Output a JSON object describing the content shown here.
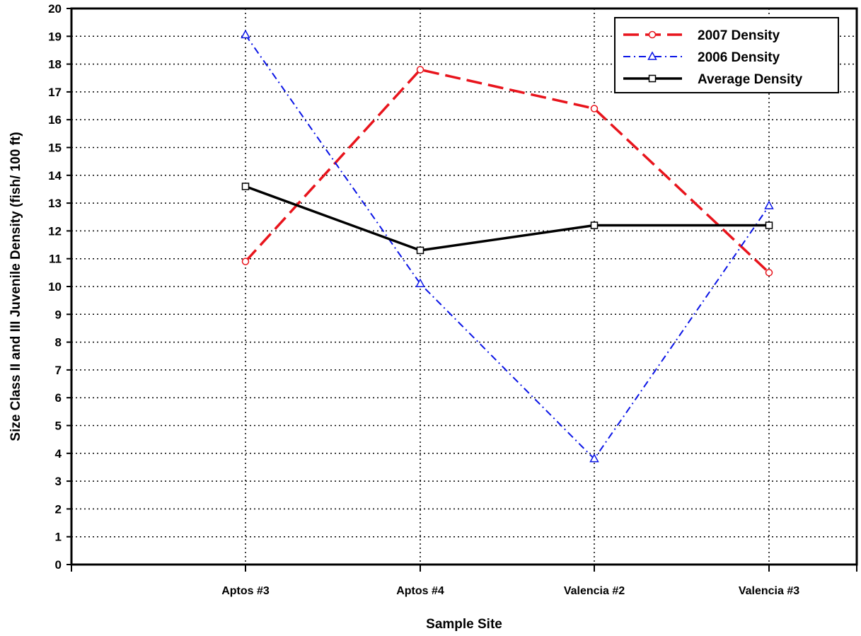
{
  "chart_data": {
    "type": "line",
    "title": "",
    "xlabel": "Sample Site",
    "ylabel": "Size Class II and III Juvenile Density (fish/ 100 ft)",
    "categories": [
      "Aptos #3",
      "Aptos #4",
      "Valencia #2",
      "Valencia #3"
    ],
    "ylim": [
      0,
      20
    ],
    "yticks": [
      "0",
      "1",
      "2",
      "3",
      "4",
      "5",
      "6",
      "7",
      "8",
      "9",
      "10",
      "11",
      "12",
      "13",
      "14",
      "15",
      "16",
      "17",
      "18",
      "19",
      "20"
    ],
    "grid": true,
    "legend_position": "top-right",
    "series": [
      {
        "name": "2007 Density",
        "values": [
          10.9,
          17.8,
          16.4,
          10.5
        ],
        "color": "#e8141c",
        "marker": "circle",
        "dash": "dashed"
      },
      {
        "name": "2006 Density",
        "values": [
          19.05,
          10.1,
          3.8,
          12.9
        ],
        "color": "#0a14e6",
        "marker": "triangle",
        "dash": "dashdot"
      },
      {
        "name": "Average Density",
        "values": [
          13.6,
          11.3,
          12.2,
          12.2
        ],
        "color": "#000000",
        "marker": "square",
        "dash": "solid"
      }
    ]
  }
}
